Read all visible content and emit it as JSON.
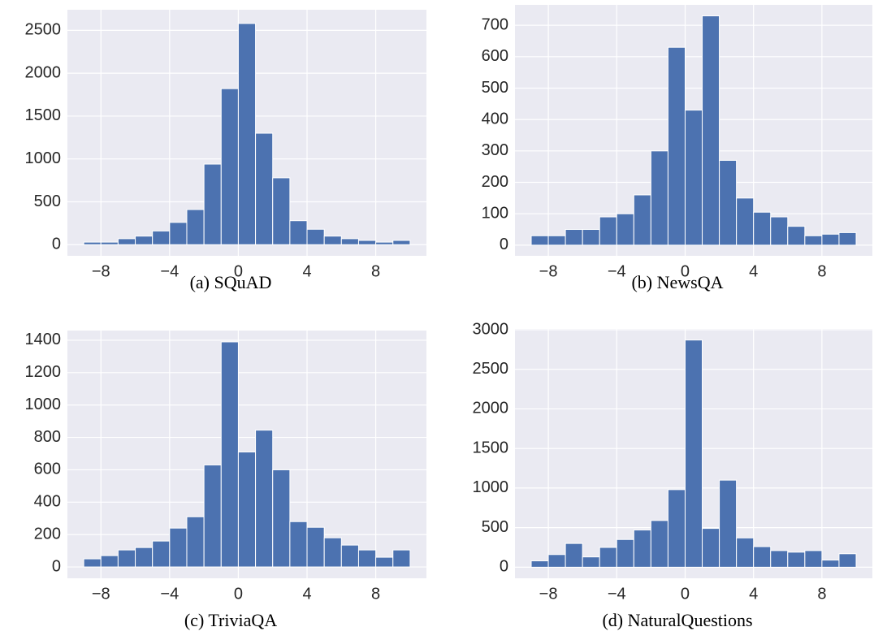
{
  "chart_data": [
    {
      "type": "histogram",
      "caption": "(a) SQuAD",
      "color": "#4c72b0",
      "grid": true,
      "bins": [
        -9,
        -8,
        -7,
        -6,
        -5,
        -4,
        -3,
        -2,
        -1,
        0,
        1,
        2,
        3,
        4,
        5,
        6,
        7,
        8,
        9,
        10
      ],
      "values": [
        30,
        30,
        70,
        100,
        160,
        260,
        410,
        940,
        1820,
        2580,
        1300,
        780,
        280,
        180,
        100,
        70,
        50,
        30,
        50
      ],
      "xlim": [
        -9.95,
        10.95
      ],
      "ylim": [
        -130,
        2740
      ],
      "xticks": [
        {
          "value": -8,
          "label": "−8"
        },
        {
          "value": -4,
          "label": "−4"
        },
        0,
        4,
        8
      ],
      "yticks": [
        0,
        500,
        1000,
        1500,
        2000,
        2500
      ]
    },
    {
      "type": "histogram",
      "caption": "(b) NewsQA",
      "color": "#4c72b0",
      "grid": true,
      "bins": [
        -9,
        -8,
        -7,
        -6,
        -5,
        -4,
        -3,
        -2,
        -1,
        0,
        1,
        2,
        3,
        4,
        5,
        6,
        7,
        8,
        9,
        10
      ],
      "values": [
        30,
        30,
        50,
        50,
        90,
        100,
        160,
        300,
        630,
        430,
        730,
        270,
        150,
        105,
        90,
        60,
        30,
        35,
        40
      ],
      "xlim": [
        -9.95,
        10.95
      ],
      "ylim": [
        -34,
        765
      ],
      "xticks": [
        {
          "value": -8,
          "label": "−8"
        },
        {
          "value": -4,
          "label": "−4"
        },
        0,
        4,
        8
      ],
      "yticks": [
        0,
        100,
        200,
        300,
        400,
        500,
        600,
        700
      ]
    },
    {
      "type": "histogram",
      "caption": "(c) TriviaQA",
      "color": "#4c72b0",
      "grid": true,
      "bins": [
        -9,
        -8,
        -7,
        -6,
        -5,
        -4,
        -3,
        -2,
        -1,
        0,
        1,
        2,
        3,
        4,
        5,
        6,
        7,
        8,
        9,
        10
      ],
      "values": [
        50,
        70,
        105,
        120,
        160,
        240,
        310,
        630,
        1390,
        710,
        845,
        600,
        280,
        245,
        180,
        135,
        105,
        60,
        105
      ],
      "xlim": [
        -9.95,
        10.95
      ],
      "ylim": [
        -70,
        1460
      ],
      "xticks": [
        {
          "value": -8,
          "label": "−8"
        },
        {
          "value": -4,
          "label": "−4"
        },
        0,
        4,
        8
      ],
      "yticks": [
        0,
        200,
        400,
        600,
        800,
        1000,
        1200,
        1400
      ]
    },
    {
      "type": "histogram",
      "caption": "(d) NaturalQuestions",
      "color": "#4c72b0",
      "grid": true,
      "bins": [
        -9,
        -8,
        -7,
        -6,
        -5,
        -4,
        -3,
        -2,
        -1,
        0,
        1,
        2,
        3,
        4,
        5,
        6,
        7,
        8,
        9,
        10
      ],
      "values": [
        80,
        160,
        300,
        130,
        250,
        350,
        470,
        590,
        980,
        2870,
        490,
        1100,
        370,
        260,
        210,
        190,
        210,
        90,
        170
      ],
      "xlim": [
        -9.95,
        10.95
      ],
      "ylim": [
        -140,
        3010
      ],
      "xticks": [
        {
          "value": -8,
          "label": "−8"
        },
        {
          "value": -4,
          "label": "−4"
        },
        0,
        4,
        8
      ],
      "yticks": [
        0,
        500,
        1000,
        1500,
        2000,
        2500,
        3000
      ]
    }
  ]
}
